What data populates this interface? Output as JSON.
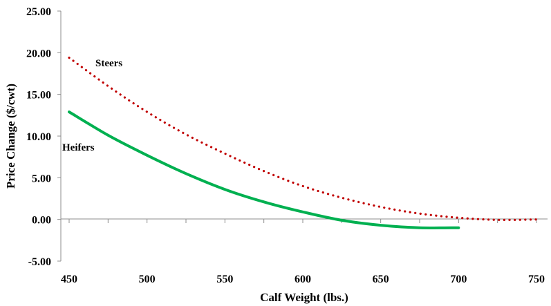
{
  "chart_data": {
    "type": "line",
    "xlabel": "Calf Weight (lbs.)",
    "ylabel": "Price Change ($/cwt)",
    "xlim": [
      450,
      750
    ],
    "ylim": [
      -5,
      25
    ],
    "x_ticks": [
      "450",
      "500",
      "550",
      "600",
      "650",
      "700",
      "750"
    ],
    "y_ticks": [
      "-5.00",
      "0.00",
      "5.00",
      "10.00",
      "15.00",
      "20.00",
      "25.00"
    ],
    "grid": false,
    "legend": "none (series labeled directly on chart)",
    "series": [
      {
        "name": "Steers",
        "color": "#c00000",
        "line_style": "dotted",
        "x": [
          450,
          475,
          500,
          525,
          550,
          575,
          600,
          625,
          650,
          675,
          700,
          725,
          750
        ],
        "y": [
          19.4,
          16.0,
          12.9,
          10.2,
          7.9,
          5.8,
          4.0,
          2.6,
          1.5,
          0.7,
          0.2,
          -0.05,
          0.0
        ]
      },
      {
        "name": "Heifers",
        "color": "#00b050",
        "line_style": "solid",
        "x": [
          450,
          475,
          500,
          525,
          550,
          575,
          600,
          625,
          650,
          675,
          700
        ],
        "y": [
          12.9,
          10.1,
          7.7,
          5.5,
          3.6,
          2.1,
          0.9,
          -0.1,
          -0.7,
          -1.0,
          -1.0
        ]
      }
    ]
  }
}
